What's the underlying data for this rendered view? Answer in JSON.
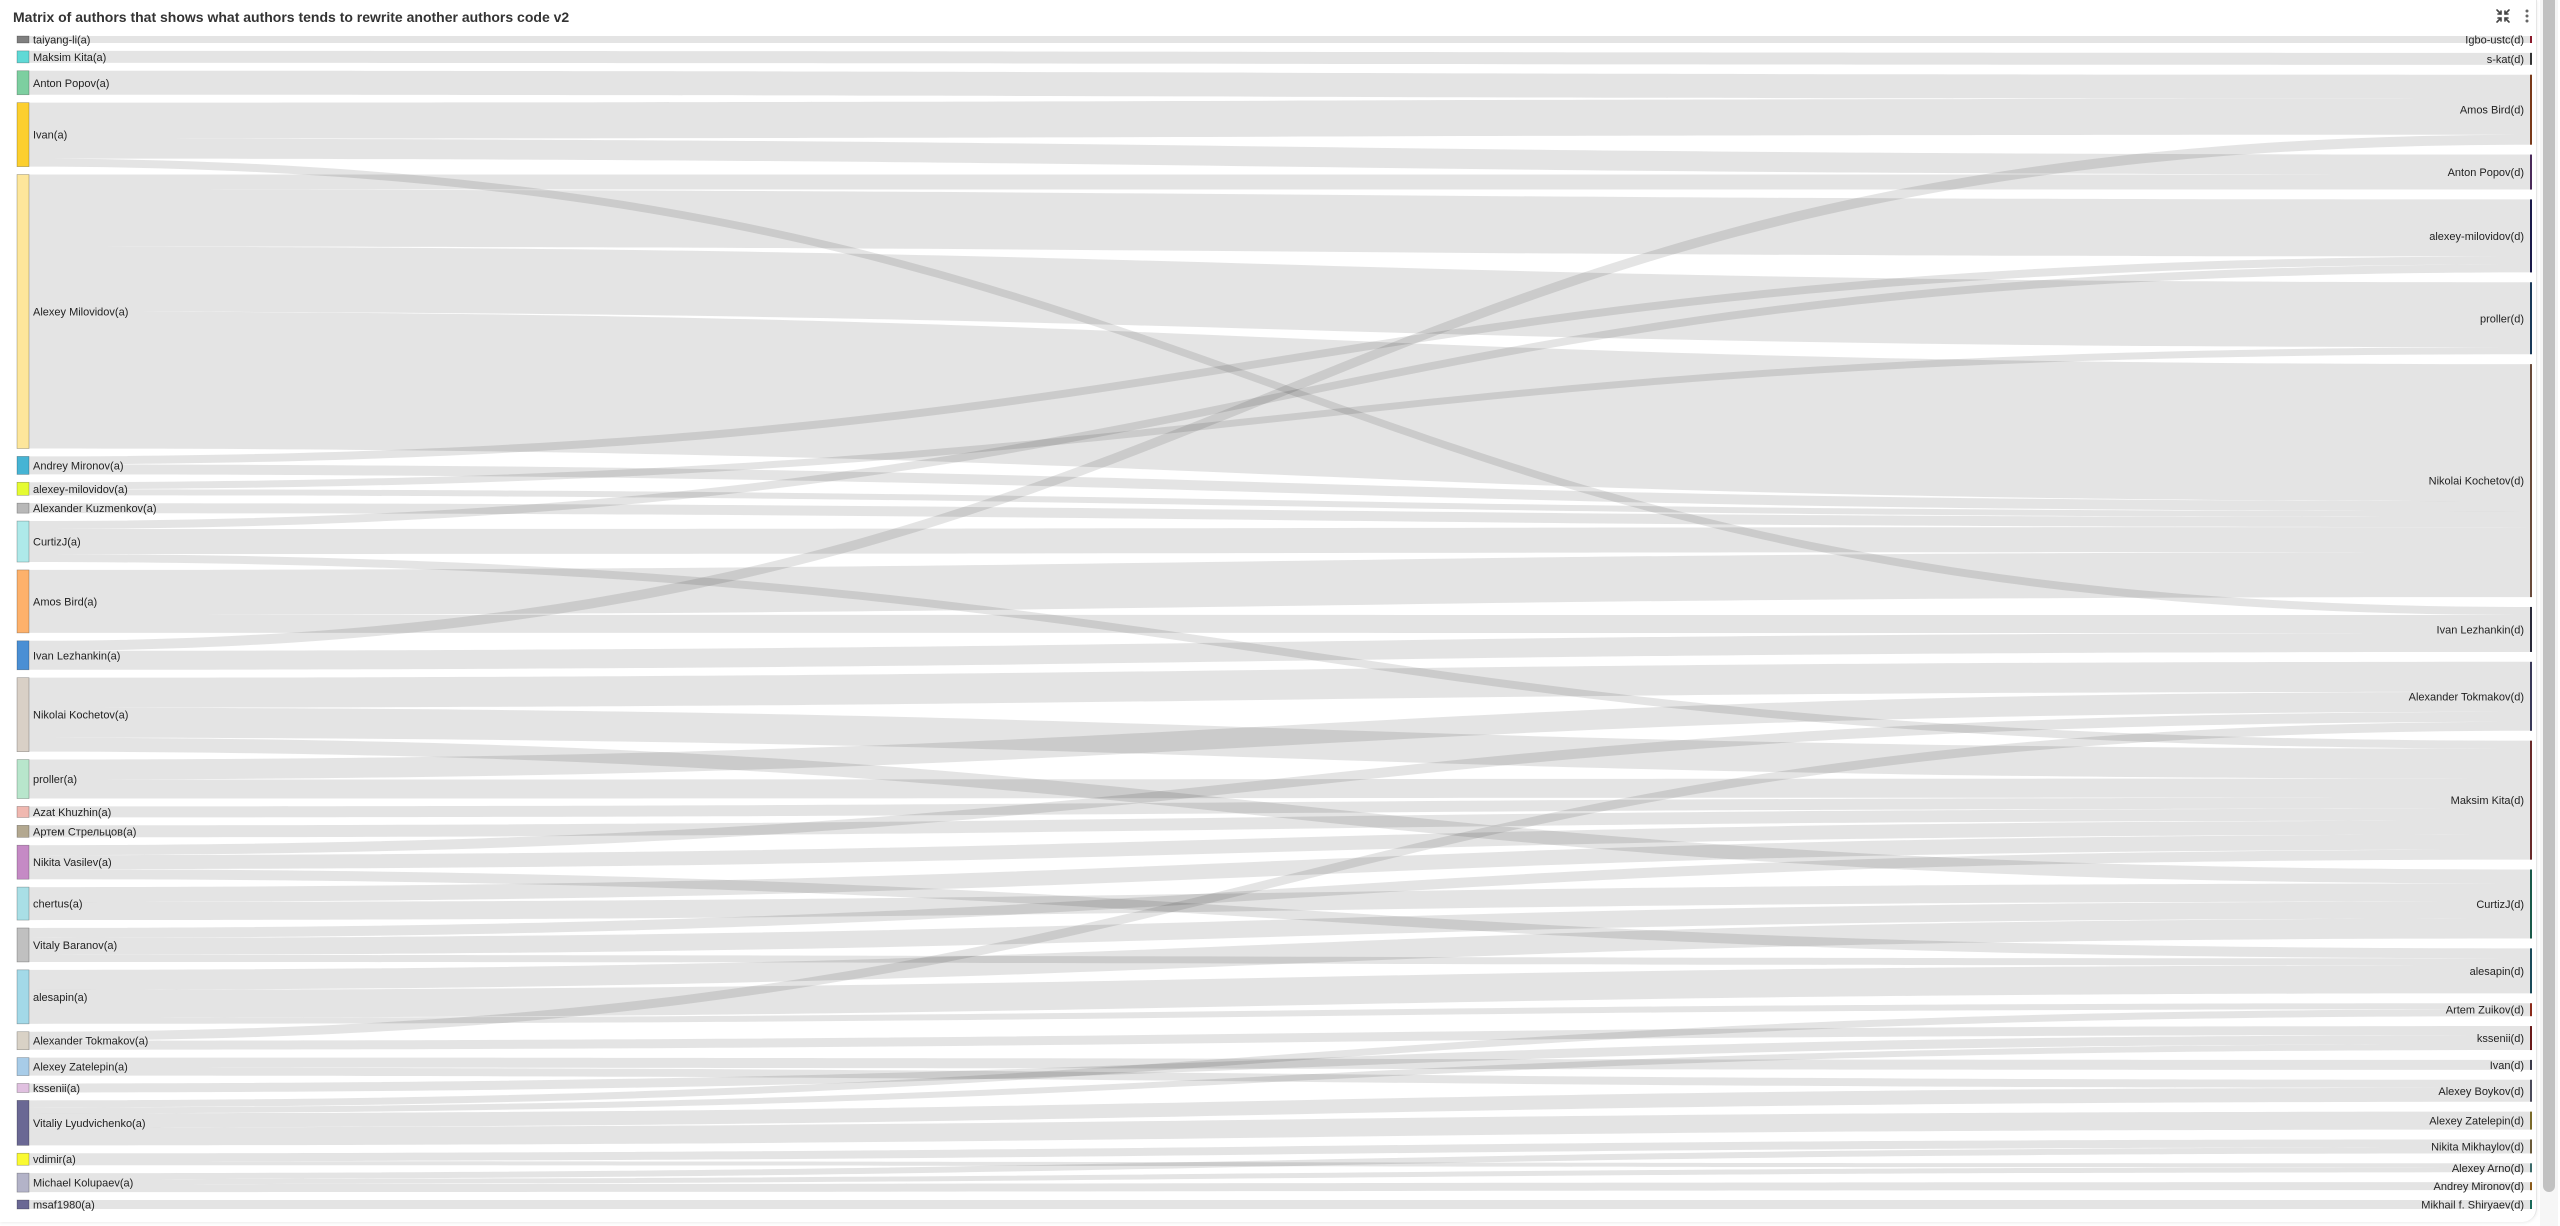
{
  "header": {
    "title": "Matrix of authors that shows what authors tends to rewrite another authors code v2",
    "icons": [
      "collapse-icon",
      "more-vertical-icon"
    ]
  },
  "chart_data": {
    "type": "sankey",
    "title": "Matrix of authors that shows what authors tends to rewrite another authors code v2",
    "link_color": "#e3e3e3",
    "left_nodes": [
      {
        "name": "taiyang-li(a)",
        "color": "#808080"
      },
      {
        "name": "Maksim Kita(a)",
        "color": "#5fd9d6"
      },
      {
        "name": "Anton Popov(a)",
        "color": "#7dcfa0"
      },
      {
        "name": "Ivan(a)",
        "color": "#fccf2e"
      },
      {
        "name": "Alexey Milovidov(a)",
        "color": "#fde69b"
      },
      {
        "name": "Andrey Mironov(a)",
        "color": "#46b4d4"
      },
      {
        "name": "alexey-milovidov(a)",
        "color": "#e5fb32"
      },
      {
        "name": "Alexander Kuzmenkov(a)",
        "color": "#b8b8b8"
      },
      {
        "name": "CurtizJ(a)",
        "color": "#aee9e9"
      },
      {
        "name": "Amos Bird(a)",
        "color": "#fdb16b"
      },
      {
        "name": "Ivan Lezhankin(a)",
        "color": "#4a8fd4"
      },
      {
        "name": "Nikolai Kochetov(a)",
        "color": "#d9d0c6"
      },
      {
        "name": "proller(a)",
        "color": "#b8e6cc"
      },
      {
        "name": "Azat Khuzhin(a)",
        "color": "#f0b8b0"
      },
      {
        "name": "Артем Стрельцов(a)",
        "color": "#b3a890"
      },
      {
        "name": "Nikita Vasilev(a)",
        "color": "#c58ac5"
      },
      {
        "name": "chertus(a)",
        "color": "#a9dfe6"
      },
      {
        "name": "Vitaly Baranov(a)",
        "color": "#c0c0c0"
      },
      {
        "name": "alesapin(a)",
        "color": "#a3d9e8"
      },
      {
        "name": "Alexander Tokmakov(a)",
        "color": "#d9d2c6"
      },
      {
        "name": "Alexey Zatelepin(a)",
        "color": "#a8cce8"
      },
      {
        "name": "kssenii(a)",
        "color": "#e0c0e0"
      },
      {
        "name": "Vitaliy Lyudvichenko(a)",
        "color": "#6a6894"
      },
      {
        "name": "vdimir(a)",
        "color": "#fafa32"
      },
      {
        "name": "Michael Kolupaev(a)",
        "color": "#b3b3c8"
      },
      {
        "name": "msaf1980(a)",
        "color": "#6a6894"
      }
    ],
    "right_nodes": [
      {
        "name": "Igbo-ustc(d)",
        "color": "#8b1a2b"
      },
      {
        "name": "s-kat(d)",
        "color": "#333333"
      },
      {
        "name": "Amos Bird(d)",
        "color": "#7a3a1a"
      },
      {
        "name": "Anton Popov(d)",
        "color": "#4a2a5a"
      },
      {
        "name": "alexey-milovidov(d)",
        "color": "#1a1a4a"
      },
      {
        "name": "proller(d)",
        "color": "#1a3a5a"
      },
      {
        "name": "Nikolai Kochetov(d)",
        "color": "#6a4a3a"
      },
      {
        "name": "Ivan Lezhankin(d)",
        "color": "#2a2a3a"
      },
      {
        "name": "Alexander Tokmakov(d)",
        "color": "#3a3a5a"
      },
      {
        "name": "Maksim Kita(d)",
        "color": "#6a2a2a"
      },
      {
        "name": "CurtizJ(d)",
        "color": "#1a5a4a"
      },
      {
        "name": "alesapin(d)",
        "color": "#1a4a5a"
      },
      {
        "name": "Artem Zuikov(d)",
        "color": "#8b2a1a"
      },
      {
        "name": "kssenii(d)",
        "color": "#6a1a1a"
      },
      {
        "name": "Ivan(d)",
        "color": "#3a3a4a"
      },
      {
        "name": "Alexey Boykov(d)",
        "color": "#4a4a5a"
      },
      {
        "name": "Alexey Zatelepin(d)",
        "color": "#7a6a2a"
      },
      {
        "name": "Nikita Mikhaylov(d)",
        "color": "#6a5a3a"
      },
      {
        "name": "Alexey Arno(d)",
        "color": "#3a6a6a"
      },
      {
        "name": "Andrey Mironov(d)",
        "color": "#8a5a1a"
      },
      {
        "name": "Mikhail f. Shiryaev(d)",
        "color": "#1a6a5a"
      }
    ],
    "links": [
      {
        "source": "taiyang-li(a)",
        "target": "Igbo-ustc(d)",
        "value": 7
      },
      {
        "source": "Maksim Kita(a)",
        "target": "s-kat(d)",
        "value": 12
      },
      {
        "source": "Anton Popov(a)",
        "target": "Amos Bird(d)",
        "value": 24
      },
      {
        "source": "Ivan(a)",
        "target": "Amos Bird(d)",
        "value": 36
      },
      {
        "source": "Ivan(a)",
        "target": "Anton Popov(d)",
        "value": 20
      },
      {
        "source": "Ivan(a)",
        "target": "Ivan Lezhankin(d)",
        "value": 8
      },
      {
        "source": "Alexey Milovidov(a)",
        "target": "Anton Popov(d)",
        "value": 15
      },
      {
        "source": "Alexey Milovidov(a)",
        "target": "alexey-milovidov(d)",
        "value": 57
      },
      {
        "source": "Alexey Milovidov(a)",
        "target": "proller(d)",
        "value": 65
      },
      {
        "source": "Alexey Milovidov(a)",
        "target": "Nikolai Kochetov(d)",
        "value": 137
      },
      {
        "source": "Andrey Mironov(a)",
        "target": "alexey-milovidov(d)",
        "value": 8
      },
      {
        "source": "Andrey Mironov(a)",
        "target": "Nikolai Kochetov(d)",
        "value": 10
      },
      {
        "source": "alexey-milovidov(a)",
        "target": "proller(d)",
        "value": 7
      },
      {
        "source": "alexey-milovidov(a)",
        "target": "Nikolai Kochetov(d)",
        "value": 6
      },
      {
        "source": "Alexander Kuzmenkov(a)",
        "target": "Nikolai Kochetov(d)",
        "value": 10
      },
      {
        "source": "CurtizJ(a)",
        "target": "alexey-milovidov(d)",
        "value": 8
      },
      {
        "source": "CurtizJ(a)",
        "target": "Nikolai Kochetov(d)",
        "value": 25
      },
      {
        "source": "CurtizJ(a)",
        "target": "Maksim Kita(d)",
        "value": 8
      },
      {
        "source": "Amos Bird(a)",
        "target": "Nikolai Kochetov(d)",
        "value": 45
      },
      {
        "source": "Amos Bird(a)",
        "target": "Ivan Lezhankin(d)",
        "value": 18
      },
      {
        "source": "Ivan Lezhankin(a)",
        "target": "Amos Bird(d)",
        "value": 10
      },
      {
        "source": "Ivan Lezhankin(a)",
        "target": "Ivan Lezhankin(d)",
        "value": 19
      },
      {
        "source": "Nikolai Kochetov(a)",
        "target": "Alexander Tokmakov(d)",
        "value": 30
      },
      {
        "source": "Nikolai Kochetov(a)",
        "target": "Maksim Kita(d)",
        "value": 30
      },
      {
        "source": "Nikolai Kochetov(a)",
        "target": "CurtizJ(d)",
        "value": 14
      },
      {
        "source": "proller(a)",
        "target": "Alexander Tokmakov(d)",
        "value": 20
      },
      {
        "source": "proller(a)",
        "target": "Maksim Kita(d)",
        "value": 19
      },
      {
        "source": "Azat Khuzhin(a)",
        "target": "Maksim Kita(d)",
        "value": 11
      },
      {
        "source": "Артем Стрельцов(a)",
        "target": "Maksim Kita(d)",
        "value": 12
      },
      {
        "source": "Nikita Vasilev(a)",
        "target": "Alexander Tokmakov(d)",
        "value": 10
      },
      {
        "source": "Nikita Vasilev(a)",
        "target": "Maksim Kita(d)",
        "value": 14
      },
      {
        "source": "Nikita Vasilev(a)",
        "target": "alesapin(d)",
        "value": 10
      },
      {
        "source": "chertus(a)",
        "target": "Maksim Kita(d)",
        "value": 15
      },
      {
        "source": "chertus(a)",
        "target": "CurtizJ(d)",
        "value": 18
      },
      {
        "source": "Vitaly Baranov(a)",
        "target": "Maksim Kita(d)",
        "value": 10
      },
      {
        "source": "Vitaly Baranov(a)",
        "target": "CurtizJ(d)",
        "value": 17
      },
      {
        "source": "Vitaly Baranov(a)",
        "target": "alesapin(d)",
        "value": 7
      },
      {
        "source": "alesapin(a)",
        "target": "CurtizJ(d)",
        "value": 20
      },
      {
        "source": "alesapin(a)",
        "target": "alesapin(d)",
        "value": 28
      },
      {
        "source": "alesapin(a)",
        "target": "Artem Zuikov(d)",
        "value": 6
      },
      {
        "source": "Alexander Tokmakov(a)",
        "target": "Alexander Tokmakov(d)",
        "value": 9
      },
      {
        "source": "Alexander Tokmakov(a)",
        "target": "kssenii(d)",
        "value": 9
      },
      {
        "source": "Alexey Zatelepin(a)",
        "target": "Ivan(d)",
        "value": 10
      },
      {
        "source": "Alexey Zatelepin(a)",
        "target": "Alexey Boykov(d)",
        "value": 8
      },
      {
        "source": "kssenii(a)",
        "target": "kssenii(d)",
        "value": 9
      },
      {
        "source": "Vitaliy Lyudvichenko(a)",
        "target": "Artem Zuikov(d)",
        "value": 7
      },
      {
        "source": "Vitaliy Lyudvichenko(a)",
        "target": "kssenii(d)",
        "value": 6
      },
      {
        "source": "Vitaliy Lyudvichenko(a)",
        "target": "Alexey Boykov(d)",
        "value": 14
      },
      {
        "source": "Vitaliy Lyudvichenko(a)",
        "target": "Alexey Zatelepin(d)",
        "value": 18
      },
      {
        "source": "vdimir(a)",
        "target": "Nikita Mikhaylov(d)",
        "value": 8
      },
      {
        "source": "vdimir(a)",
        "target": "Alexey Arno(d)",
        "value": 4
      },
      {
        "source": "Michael Kolupaev(a)",
        "target": "Nikita Mikhaylov(d)",
        "value": 6
      },
      {
        "source": "Michael Kolupaev(a)",
        "target": "Alexey Arno(d)",
        "value": 5
      },
      {
        "source": "Michael Kolupaev(a)",
        "target": "Andrey Mironov(d)",
        "value": 8
      },
      {
        "source": "msaf1980(a)",
        "target": "Mikhail f. Shiryaev(d)",
        "value": 9
      }
    ]
  }
}
